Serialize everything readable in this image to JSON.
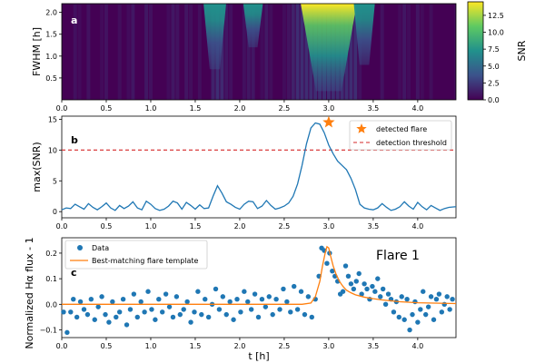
{
  "colors": {
    "heat_low": "#440154",
    "heat_mid1": "#3b528b",
    "heat_mid2": "#21918c",
    "heat_mid3": "#5ec962",
    "heat_high": "#fde725",
    "line": "#1f77b4",
    "flare_marker": "#ff7f0e",
    "threshold": "#d62728",
    "data_points": "#1f77b4",
    "template": "#ff7f0e"
  },
  "chart_data": [
    {
      "type": "heatmap",
      "panel_label": "a",
      "ylabel": "FWHM [h]",
      "xlim": [
        0.0,
        4.43
      ],
      "ylim": [
        0.0,
        2.2
      ],
      "yticks": [
        "0.5",
        "1.0",
        "1.5",
        "2.0"
      ],
      "ytick_values": [
        0.5,
        1.0,
        1.5,
        2.0
      ],
      "xticks": [
        "0.0",
        "0.5",
        "1.0",
        "1.5",
        "2.0",
        "2.5",
        "3.0",
        "3.5",
        "4.0"
      ],
      "xtick_values": [
        0.0,
        0.5,
        1.0,
        1.5,
        2.0,
        2.5,
        3.0,
        3.5,
        4.0
      ],
      "colorbar": {
        "label": "SNR",
        "range": [
          0.0,
          14.5
        ],
        "ticks": [
          "0.0",
          "2.5",
          "5.0",
          "7.5",
          "10.0",
          "12.5"
        ],
        "tick_values": [
          0.0,
          2.5,
          5.0,
          7.5,
          10.0,
          12.5
        ]
      },
      "hotspots": [
        {
          "t": 3.0,
          "fwhm_min": 0.2,
          "fwhm_max": 2.2,
          "peak_snr": 14.5
        },
        {
          "t": 1.72,
          "fwhm_min": 0.7,
          "fwhm_max": 2.2,
          "peak_snr": 3.5
        },
        {
          "t": 2.15,
          "fwhm_min": 1.2,
          "fwhm_max": 2.2,
          "peak_snr": 2.5
        },
        {
          "t": 3.4,
          "fwhm_min": 0.8,
          "fwhm_max": 2.2,
          "peak_snr": 3.0
        }
      ]
    },
    {
      "type": "line",
      "panel_label": "b",
      "ylabel": "max(SNR)",
      "xlim": [
        0.0,
        4.43
      ],
      "ylim": [
        -1.0,
        15.5
      ],
      "yticks": [
        "0",
        "5",
        "10",
        "15"
      ],
      "ytick_values": [
        0,
        5,
        10,
        15
      ],
      "xticks": [
        "0.0",
        "0.5",
        "1.0",
        "1.5",
        "2.0",
        "2.5",
        "3.0",
        "3.5",
        "4.0"
      ],
      "xtick_values": [
        0.0,
        0.5,
        1.0,
        1.5,
        2.0,
        2.5,
        3.0,
        3.5,
        4.0
      ],
      "series": [
        {
          "name": "",
          "x": [
            0.0,
            0.05,
            0.1,
            0.15,
            0.2,
            0.25,
            0.3,
            0.35,
            0.4,
            0.45,
            0.5,
            0.55,
            0.6,
            0.65,
            0.7,
            0.75,
            0.8,
            0.85,
            0.9,
            0.95,
            1.0,
            1.05,
            1.1,
            1.15,
            1.2,
            1.25,
            1.3,
            1.35,
            1.4,
            1.45,
            1.5,
            1.55,
            1.6,
            1.65,
            1.7,
            1.75,
            1.8,
            1.85,
            1.9,
            1.95,
            2.0,
            2.05,
            2.1,
            2.15,
            2.2,
            2.25,
            2.3,
            2.35,
            2.4,
            2.45,
            2.5,
            2.55,
            2.6,
            2.65,
            2.7,
            2.75,
            2.8,
            2.85,
            2.9,
            2.95,
            3.0,
            3.05,
            3.1,
            3.15,
            3.2,
            3.25,
            3.3,
            3.35,
            3.4,
            3.45,
            3.5,
            3.55,
            3.6,
            3.65,
            3.7,
            3.75,
            3.8,
            3.85,
            3.9,
            3.95,
            4.0,
            4.05,
            4.1,
            4.15,
            4.2,
            4.25,
            4.3,
            4.35,
            4.43
          ],
          "values": [
            0.3,
            0.6,
            0.5,
            1.2,
            0.8,
            0.4,
            1.3,
            0.7,
            0.3,
            0.8,
            1.4,
            0.6,
            0.2,
            1.0,
            0.5,
            0.9,
            1.6,
            0.6,
            0.3,
            1.7,
            1.2,
            0.5,
            0.2,
            0.4,
            0.9,
            1.7,
            1.4,
            0.4,
            1.5,
            1.0,
            0.4,
            1.1,
            0.5,
            0.6,
            2.5,
            4.2,
            3.0,
            1.6,
            1.2,
            0.7,
            0.4,
            1.2,
            1.7,
            1.6,
            0.5,
            0.9,
            1.8,
            1.0,
            0.4,
            0.6,
            0.9,
            1.4,
            2.5,
            4.5,
            7.5,
            11.0,
            13.6,
            14.4,
            14.2,
            12.8,
            10.8,
            9.4,
            8.2,
            7.5,
            6.8,
            5.4,
            3.6,
            1.2,
            0.6,
            0.4,
            0.3,
            0.6,
            1.3,
            0.7,
            0.2,
            0.4,
            0.8,
            1.6,
            0.9,
            0.4,
            1.5,
            0.8,
            0.3,
            1.0,
            0.6,
            0.2,
            0.5,
            0.7,
            0.8
          ]
        }
      ],
      "detected_flare": {
        "x": 3.0,
        "y": 14.5,
        "label": "detected flare"
      },
      "threshold": {
        "y": 10.0,
        "label": "detection threshold"
      }
    },
    {
      "type": "scatter",
      "panel_label": "c",
      "ylabel": "Normalized Hα flux - 1",
      "xlabel": "t [h]",
      "xlim": [
        0.0,
        4.43
      ],
      "ylim": [
        -0.13,
        0.26
      ],
      "yticks": [
        "−0.1",
        "0.0",
        "0.1",
        "0.2"
      ],
      "ytick_values": [
        -0.1,
        0.0,
        0.1,
        0.2
      ],
      "xticks": [
        "0.0",
        "0.5",
        "1.0",
        "1.5",
        "2.0",
        "2.5",
        "3.0",
        "3.5",
        "4.0"
      ],
      "xtick_values": [
        0.0,
        0.5,
        1.0,
        1.5,
        2.0,
        2.5,
        3.0,
        3.5,
        4.0
      ],
      "annotation": "Flare 1",
      "series": [
        {
          "name": "Data",
          "x": [
            0.02,
            0.06,
            0.1,
            0.13,
            0.17,
            0.21,
            0.25,
            0.29,
            0.33,
            0.37,
            0.41,
            0.45,
            0.49,
            0.53,
            0.57,
            0.61,
            0.65,
            0.69,
            0.73,
            0.77,
            0.81,
            0.85,
            0.89,
            0.93,
            0.97,
            1.01,
            1.05,
            1.09,
            1.13,
            1.17,
            1.21,
            1.25,
            1.29,
            1.33,
            1.37,
            1.41,
            1.45,
            1.49,
            1.53,
            1.57,
            1.61,
            1.65,
            1.69,
            1.73,
            1.77,
            1.81,
            1.85,
            1.89,
            1.93,
            1.97,
            2.01,
            2.05,
            2.09,
            2.13,
            2.17,
            2.21,
            2.25,
            2.29,
            2.33,
            2.37,
            2.41,
            2.45,
            2.49,
            2.53,
            2.57,
            2.61,
            2.65,
            2.69,
            2.73,
            2.77,
            2.81,
            2.85,
            2.89,
            2.92,
            2.95,
            2.98,
            3.01,
            3.04,
            3.07,
            3.1,
            3.13,
            3.16,
            3.19,
            3.22,
            3.25,
            3.28,
            3.31,
            3.34,
            3.37,
            3.4,
            3.43,
            3.46,
            3.49,
            3.52,
            3.55,
            3.58,
            3.61,
            3.64,
            3.67,
            3.7,
            3.73,
            3.76,
            3.79,
            3.82,
            3.85,
            3.88,
            3.91,
            3.94,
            3.97,
            4.0,
            4.03,
            4.06,
            4.09,
            4.12,
            4.15,
            4.18,
            4.21,
            4.24,
            4.27,
            4.3,
            4.33,
            4.36,
            4.39
          ],
          "values": [
            -0.03,
            -0.11,
            -0.03,
            0.02,
            -0.05,
            0.01,
            -0.02,
            -0.04,
            0.02,
            -0.06,
            -0.01,
            0.03,
            -0.04,
            -0.07,
            0.01,
            -0.05,
            -0.03,
            0.02,
            -0.08,
            -0.02,
            0.04,
            -0.05,
            0.01,
            -0.03,
            0.05,
            -0.02,
            -0.06,
            0.02,
            -0.03,
            0.04,
            -0.01,
            -0.05,
            0.03,
            -0.04,
            -0.02,
            0.01,
            -0.07,
            -0.03,
            0.05,
            -0.04,
            0.02,
            -0.05,
            0.0,
            0.06,
            -0.02,
            0.03,
            -0.04,
            0.01,
            -0.06,
            0.02,
            -0.03,
            0.05,
            0.01,
            -0.02,
            0.04,
            -0.05,
            0.02,
            -0.01,
            0.03,
            -0.04,
            0.02,
            -0.02,
            0.06,
            0.01,
            -0.03,
            0.07,
            -0.02,
            0.05,
            -0.04,
            0.03,
            -0.05,
            0.02,
            0.11,
            0.22,
            0.21,
            0.16,
            0.2,
            0.13,
            0.11,
            0.09,
            0.04,
            0.05,
            0.15,
            0.11,
            0.08,
            0.06,
            0.09,
            0.12,
            0.04,
            0.08,
            0.06,
            0.02,
            0.07,
            0.05,
            0.1,
            0.03,
            0.06,
            0.0,
            0.04,
            0.02,
            -0.03,
            0.01,
            -0.05,
            0.03,
            -0.06,
            0.02,
            -0.1,
            -0.04,
            0.01,
            -0.07,
            -0.02,
            0.05,
            -0.04,
            -0.01,
            0.03,
            -0.06,
            0.02,
            0.04,
            -0.03,
            0.0,
            0.03,
            -0.02,
            0.02
          ]
        },
        {
          "name": "Best-matching flare template",
          "x": [
            0.0,
            2.7,
            2.8,
            2.85,
            2.9,
            2.93,
            2.96,
            2.98,
            3.0,
            3.02,
            3.05,
            3.08,
            3.12,
            3.16,
            3.2,
            3.25,
            3.3,
            3.4,
            3.5,
            3.6,
            3.8,
            4.0,
            4.43
          ],
          "values": [
            0.0,
            0.0,
            0.005,
            0.03,
            0.09,
            0.15,
            0.2,
            0.225,
            0.22,
            0.19,
            0.15,
            0.12,
            0.09,
            0.07,
            0.055,
            0.045,
            0.037,
            0.028,
            0.022,
            0.017,
            0.01,
            0.006,
            0.003
          ]
        }
      ]
    }
  ]
}
